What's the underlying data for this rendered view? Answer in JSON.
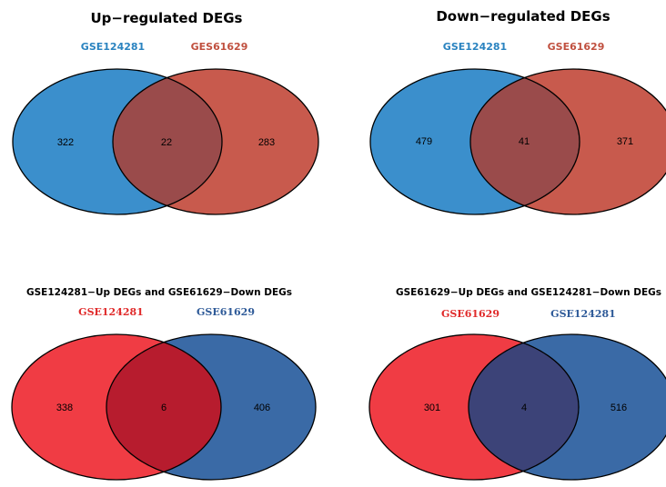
{
  "panels": [
    {
      "title": "Up−regulated DEGs",
      "set_a": {
        "label": "GSE124281",
        "color": "#3b8fcc",
        "label_color": "#2a83c0"
      },
      "set_b": {
        "label": "GES61629",
        "color": "#c85a4d",
        "label_color": "#c0503f"
      },
      "overlap_color": "#9a4b4b",
      "counts": {
        "a_only": "322",
        "both": "22",
        "b_only": "283"
      }
    },
    {
      "title": "Down−regulated DEGs",
      "set_a": {
        "label": "GSE124281",
        "color": "#3b8fcc",
        "label_color": "#2a83c0"
      },
      "set_b": {
        "label": "GSE61629",
        "color": "#c85a4d",
        "label_color": "#c0503f"
      },
      "overlap_color": "#9a4b4b",
      "counts": {
        "a_only": "479",
        "both": "41",
        "b_only": "371"
      }
    },
    {
      "title": "GSE124281−Up DEGs and  GSE61629−Down DEGs",
      "set_a": {
        "label": "GSE124281",
        "color": "#f03c44",
        "label_color": "#e02a2a"
      },
      "set_b": {
        "label": "GSE61629",
        "color": "#3a6aa6",
        "label_color": "#2e5a98"
      },
      "overlap_color": "#b71c2e",
      "counts": {
        "a_only": "338",
        "both": "6",
        "b_only": "406"
      }
    },
    {
      "title": "GSE61629−Up DEGs and  GSE124281−Down DEGs",
      "set_a": {
        "label": "GSE61629",
        "color": "#f03c44",
        "label_color": "#e02a2a"
      },
      "set_b": {
        "label": "GSE124281",
        "color": "#3a6aa6",
        "label_color": "#2e5a98"
      },
      "overlap_color": "#3c4378",
      "counts": {
        "a_only": "301",
        "both": "4",
        "b_only": "516"
      }
    }
  ]
}
